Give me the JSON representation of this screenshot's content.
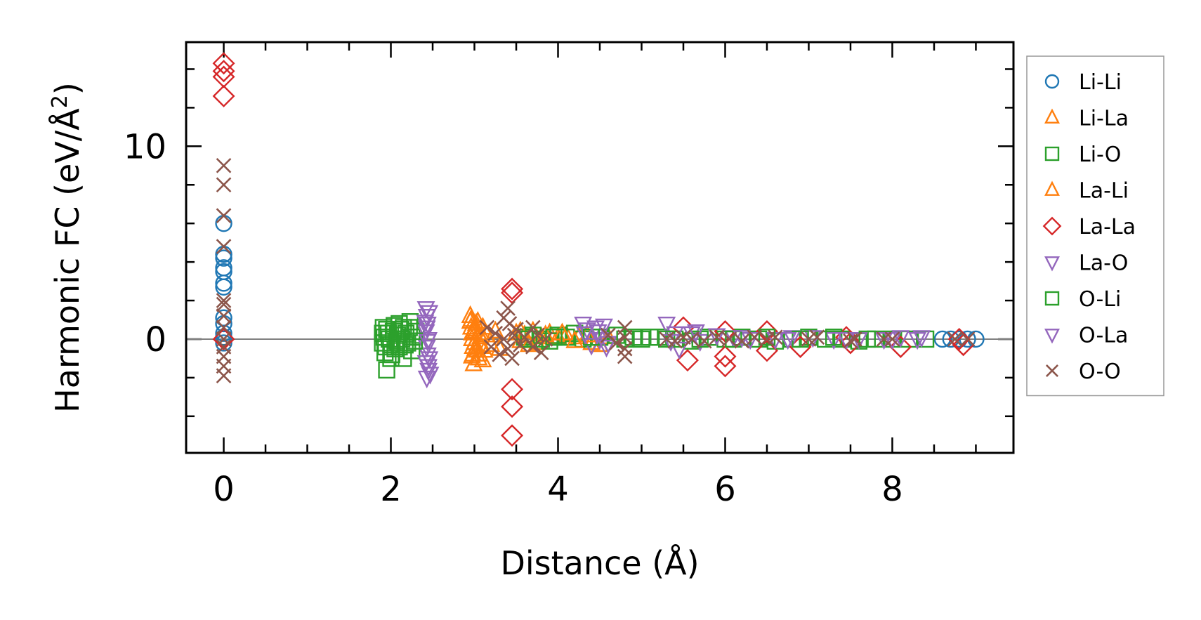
{
  "chart_data": {
    "type": "scatter",
    "xlabel": "Distance (Å)",
    "ylabel_main": "Harmonic FC (eV/Å",
    "ylabel_sup": "2",
    "ylabel_close": ")",
    "xlim": [
      -0.45,
      9.45
    ],
    "ylim": [
      -5.9,
      15.4
    ],
    "xticks": [
      0,
      2,
      4,
      6,
      8
    ],
    "xtick_labels": [
      "0",
      "2",
      "4",
      "6",
      "8"
    ],
    "yticks": [
      0,
      10
    ],
    "ytick_labels": [
      "0",
      "10"
    ],
    "x_minor_step": 0.5,
    "y_minor_step": 2,
    "zero_line": true,
    "grid": false,
    "legend_position": "outside-right",
    "series": [
      {
        "name": "Li-Li",
        "marker": "circle",
        "color": "#1f77b4",
        "points": [
          [
            0,
            6.0
          ],
          [
            0,
            4.4
          ],
          [
            0,
            4.2
          ],
          [
            0,
            3.7
          ],
          [
            0,
            3.5
          ],
          [
            0,
            2.9
          ],
          [
            0,
            2.7
          ],
          [
            0,
            1.1
          ],
          [
            0,
            0.8
          ],
          [
            0,
            0.3
          ],
          [
            0,
            0.1
          ],
          [
            0,
            -0.2
          ],
          [
            8.6,
            0
          ],
          [
            8.7,
            0
          ],
          [
            8.8,
            0
          ],
          [
            8.9,
            0
          ],
          [
            9.0,
            0
          ]
        ]
      },
      {
        "name": "Li-La",
        "marker": "triangle-up",
        "color": "#ff7f0e",
        "points": [
          [
            2.95,
            1.2
          ],
          [
            2.95,
            0.9
          ],
          [
            2.96,
            0.6
          ],
          [
            2.97,
            0.3
          ],
          [
            2.97,
            0.0
          ],
          [
            2.98,
            -0.4
          ],
          [
            2.98,
            -0.8
          ],
          [
            2.99,
            -1.3
          ],
          [
            3.0,
            0.5
          ],
          [
            3.0,
            -0.2
          ],
          [
            3.02,
            0.8
          ],
          [
            3.03,
            -0.6
          ],
          [
            3.05,
            0.3
          ],
          [
            3.05,
            -1.0
          ],
          [
            3.07,
            0.1
          ],
          [
            3.08,
            -0.4
          ],
          [
            3.1,
            0.6
          ],
          [
            3.1,
            -1.1
          ],
          [
            3.15,
            0.2
          ],
          [
            3.2,
            -0.3
          ],
          [
            3.25,
            0.4
          ],
          [
            3.3,
            -0.5
          ],
          [
            3.5,
            0.3
          ],
          [
            3.55,
            -0.1
          ],
          [
            3.6,
            0.2
          ],
          [
            3.7,
            0.4
          ],
          [
            3.75,
            -0.2
          ],
          [
            3.8,
            0.1
          ],
          [
            3.9,
            0.3
          ],
          [
            4.0,
            0.1
          ],
          [
            4.1,
            0.2
          ],
          [
            4.25,
            0.1
          ],
          [
            4.4,
            -0.2
          ],
          [
            4.5,
            -0.3
          ],
          [
            4.6,
            0.1
          ]
        ]
      },
      {
        "name": "Li-O",
        "marker": "square",
        "color": "#2ca02c",
        "points": [
          [
            1.9,
            0.3
          ],
          [
            1.9,
            -0.2
          ],
          [
            1.92,
            0.1
          ],
          [
            1.93,
            -0.7
          ],
          [
            1.95,
            0.5
          ],
          [
            1.95,
            -1.6
          ],
          [
            1.98,
            0.0
          ],
          [
            2.0,
            -0.3
          ],
          [
            2.0,
            -1.0
          ],
          [
            2.03,
            0.4
          ],
          [
            2.05,
            -0.5
          ],
          [
            2.08,
            0.2
          ],
          [
            2.1,
            0.8
          ],
          [
            2.1,
            -0.4
          ],
          [
            2.13,
            0.0
          ],
          [
            2.15,
            0.6
          ],
          [
            2.15,
            -1.0
          ],
          [
            2.18,
            0.3
          ],
          [
            2.2,
            -0.2
          ],
          [
            2.23,
            0.9
          ],
          [
            2.25,
            0.1
          ],
          [
            2.25,
            -0.6
          ],
          [
            2.3,
            0.4
          ],
          [
            3.6,
            0.1
          ],
          [
            3.7,
            0.2
          ],
          [
            3.8,
            0.0
          ],
          [
            3.9,
            -0.1
          ],
          [
            4.0,
            0.2
          ],
          [
            4.1,
            0.1
          ],
          [
            4.2,
            0.3
          ],
          [
            4.3,
            0.0
          ],
          [
            4.5,
            0.1
          ],
          [
            4.7,
            0.2
          ],
          [
            4.9,
            0.1
          ],
          [
            5.0,
            0.0
          ],
          [
            5.2,
            0.1
          ],
          [
            5.4,
            0.0
          ],
          [
            5.6,
            -0.1
          ],
          [
            5.8,
            0.1
          ],
          [
            6.0,
            0.0
          ],
          [
            6.2,
            0.1
          ],
          [
            6.4,
            0.0
          ],
          [
            6.6,
            -0.1
          ],
          [
            6.8,
            0.0
          ],
          [
            7.0,
            0.1
          ],
          [
            7.2,
            0.0
          ],
          [
            7.4,
            0.0
          ],
          [
            7.6,
            -0.1
          ],
          [
            7.8,
            0.0
          ],
          [
            8.0,
            0.0
          ],
          [
            8.2,
            0.0
          ],
          [
            8.4,
            0.0
          ]
        ]
      },
      {
        "name": "La-Li",
        "marker": "triangle-up",
        "color": "#ff7f0e",
        "points": [
          [
            2.96,
            1.0
          ],
          [
            2.97,
            -0.9
          ],
          [
            2.99,
            0.4
          ],
          [
            3.01,
            -0.5
          ],
          [
            3.04,
            0.9
          ],
          [
            3.06,
            -0.8
          ],
          [
            3.09,
            0.2
          ],
          [
            3.12,
            -0.6
          ],
          [
            3.55,
            0.4
          ],
          [
            3.65,
            -0.3
          ],
          [
            3.85,
            0.2
          ],
          [
            4.05,
            0.3
          ],
          [
            4.2,
            -0.1
          ],
          [
            4.35,
            0.2
          ]
        ]
      },
      {
        "name": "La-La",
        "marker": "diamond",
        "color": "#d62728",
        "points": [
          [
            0,
            14.3
          ],
          [
            0,
            13.9
          ],
          [
            0,
            13.6
          ],
          [
            0,
            12.6
          ],
          [
            0,
            0.0
          ],
          [
            3.45,
            2.6
          ],
          [
            3.45,
            2.4
          ],
          [
            3.45,
            -2.6
          ],
          [
            3.45,
            -3.5
          ],
          [
            3.45,
            -5.0
          ],
          [
            5.5,
            0.6
          ],
          [
            5.55,
            -1.1
          ],
          [
            6.0,
            0.4
          ],
          [
            6.0,
            -0.9
          ],
          [
            6.0,
            -1.4
          ],
          [
            6.5,
            0.4
          ],
          [
            6.5,
            -0.6
          ],
          [
            6.9,
            -0.4
          ],
          [
            7.45,
            0.1
          ],
          [
            7.5,
            -0.2
          ],
          [
            8.1,
            -0.4
          ],
          [
            8.8,
            0.0
          ],
          [
            8.85,
            -0.3
          ]
        ]
      },
      {
        "name": "La-O",
        "marker": "triangle-down",
        "color": "#9467bd",
        "points": [
          [
            2.42,
            1.6
          ],
          [
            2.43,
            1.2
          ],
          [
            2.44,
            0.8
          ],
          [
            2.42,
            0.4
          ],
          [
            2.45,
            0.0
          ],
          [
            2.43,
            -0.4
          ],
          [
            2.44,
            -0.8
          ],
          [
            2.42,
            -1.2
          ],
          [
            2.45,
            -1.6
          ],
          [
            2.43,
            -2.0
          ],
          [
            2.46,
            1.4
          ],
          [
            2.47,
            -1.8
          ],
          [
            4.3,
            0.8
          ],
          [
            4.35,
            0.5
          ],
          [
            4.4,
            -0.3
          ],
          [
            4.45,
            0.6
          ],
          [
            4.5,
            0.0
          ],
          [
            4.55,
            0.7
          ],
          [
            4.6,
            -0.2
          ],
          [
            5.3,
            0.8
          ],
          [
            5.4,
            0.3
          ],
          [
            5.45,
            -0.5
          ],
          [
            5.6,
            0.3
          ],
          [
            5.7,
            -0.1
          ],
          [
            5.9,
            0.2
          ],
          [
            6.1,
            0.1
          ],
          [
            6.3,
            0.0
          ],
          [
            6.6,
            0.0
          ],
          [
            6.8,
            0.1
          ],
          [
            7.05,
            0.1
          ],
          [
            7.3,
            0.0
          ],
          [
            7.6,
            0.0
          ],
          [
            7.9,
            0.0
          ],
          [
            8.1,
            0.1
          ],
          [
            8.35,
            0.1
          ]
        ]
      },
      {
        "name": "O-Li",
        "marker": "square",
        "color": "#2ca02c",
        "points": [
          [
            1.91,
            0.6
          ],
          [
            1.94,
            -0.4
          ],
          [
            1.97,
            0.3
          ],
          [
            2.01,
            -0.8
          ],
          [
            2.04,
            0.7
          ],
          [
            2.07,
            -0.1
          ],
          [
            2.12,
            0.5
          ],
          [
            2.17,
            -0.3
          ],
          [
            2.22,
            0.6
          ],
          [
            2.28,
            -0.1
          ],
          [
            3.65,
            0.0
          ],
          [
            3.95,
            0.1
          ],
          [
            4.4,
            0.1
          ],
          [
            4.8,
            0.0
          ],
          [
            5.1,
            0.1
          ],
          [
            5.3,
            0.0
          ],
          [
            5.7,
            0.0
          ],
          [
            6.1,
            0.0
          ],
          [
            6.5,
            0.1
          ],
          [
            6.9,
            0.0
          ],
          [
            7.3,
            0.1
          ],
          [
            7.7,
            0.0
          ]
        ]
      },
      {
        "name": "O-La",
        "marker": "triangle-down",
        "color": "#9467bd",
        "points": [
          [
            2.41,
            0.9
          ],
          [
            2.44,
            -0.1
          ],
          [
            2.46,
            -1.0
          ],
          [
            2.43,
            0.6
          ],
          [
            2.45,
            -1.4
          ],
          [
            4.32,
            0.3
          ],
          [
            4.48,
            0.4
          ],
          [
            4.58,
            -0.4
          ],
          [
            5.35,
            -0.1
          ],
          [
            5.65,
            0.4
          ],
          [
            6.2,
            0.1
          ],
          [
            6.75,
            0.0
          ],
          [
            7.45,
            0.0
          ],
          [
            8.0,
            0.0
          ],
          [
            8.3,
            0.0
          ]
        ]
      },
      {
        "name": "O-O",
        "marker": "x",
        "color": "#8c564b",
        "points": [
          [
            0,
            9.0
          ],
          [
            0,
            8.0
          ],
          [
            0,
            6.4
          ],
          [
            0,
            4.8
          ],
          [
            0,
            2.0
          ],
          [
            0,
            1.8
          ],
          [
            0,
            1.2
          ],
          [
            0,
            0.6
          ],
          [
            0,
            0.0
          ],
          [
            0,
            -0.4
          ],
          [
            0,
            -0.9
          ],
          [
            0,
            -1.4
          ],
          [
            0,
            -1.9
          ],
          [
            3.15,
            0.6
          ],
          [
            3.2,
            -0.4
          ],
          [
            3.25,
            0.3
          ],
          [
            3.3,
            -0.8
          ],
          [
            3.35,
            1.1
          ],
          [
            3.35,
            0.0
          ],
          [
            3.4,
            -0.5
          ],
          [
            3.4,
            1.6
          ],
          [
            3.42,
            0.8
          ],
          [
            3.45,
            -1.0
          ],
          [
            3.48,
            0.2
          ],
          [
            3.5,
            0.5
          ],
          [
            3.55,
            -0.3
          ],
          [
            3.6,
            0.1
          ],
          [
            3.7,
            0.6
          ],
          [
            3.7,
            -0.4
          ],
          [
            3.75,
            0.2
          ],
          [
            3.8,
            -0.7
          ],
          [
            3.85,
            0.0
          ],
          [
            4.6,
            0.2
          ],
          [
            4.7,
            -0.2
          ],
          [
            4.8,
            0.6
          ],
          [
            4.8,
            0.1
          ],
          [
            4.8,
            -0.5
          ],
          [
            4.8,
            -0.9
          ],
          [
            5.3,
            0.0
          ],
          [
            5.4,
            -0.1
          ],
          [
            5.5,
            0.1
          ],
          [
            5.6,
            0.0
          ],
          [
            5.75,
            -0.1
          ],
          [
            5.9,
            0.1
          ],
          [
            6.05,
            0.0
          ],
          [
            6.2,
            -0.1
          ],
          [
            6.35,
            0.1
          ],
          [
            6.5,
            0.0
          ],
          [
            6.6,
            0.1
          ],
          [
            7.0,
            0.0
          ],
          [
            7.1,
            0.1
          ],
          [
            7.5,
            -0.1
          ],
          [
            7.55,
            0.0
          ],
          [
            7.9,
            0.0
          ],
          [
            8.0,
            0.0
          ],
          [
            8.75,
            0.0
          ],
          [
            8.9,
            0.0
          ]
        ]
      }
    ]
  }
}
